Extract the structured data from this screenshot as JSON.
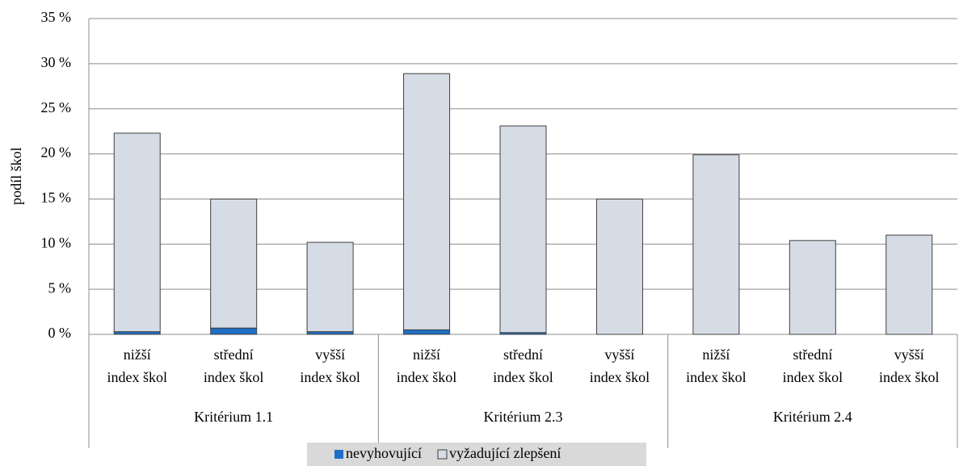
{
  "chart_data": {
    "type": "stacked_bar",
    "ylabel": "podíl škol",
    "categories": [
      "nižší\nindex škol",
      "střední\nindex škol",
      "vyšší\nindex škol",
      "nižší\nindex škol",
      "střední\nindex škol",
      "vyšší\nindex škol",
      "nižší\nindex škol",
      "střední\nindex škol",
      "vyšší\nindex škol"
    ],
    "groups": [
      "Kritérium 1.1",
      "Kritérium 2.3",
      "Kritérium 2.4"
    ],
    "series": [
      {
        "name": "nevyhovující",
        "color": "#1f6fc5",
        "values": [
          0.3,
          0.7,
          0.3,
          0.5,
          0.2,
          0,
          0,
          0,
          0
        ]
      },
      {
        "name": "vyžadující zlepšení",
        "color": "#d6dce5",
        "values": [
          22.0,
          14.3,
          9.9,
          28.4,
          22.9,
          15.0,
          19.9,
          10.4,
          11.0
        ]
      }
    ],
    "ylim": [
      0,
      35
    ],
    "yticks": [
      {
        "value": 0,
        "label": "0 %"
      },
      {
        "value": 5,
        "label": "5 %"
      },
      {
        "value": 10,
        "label": "10 %"
      },
      {
        "value": 15,
        "label": "15 %"
      },
      {
        "value": 20,
        "label": "20 %"
      },
      {
        "value": 25,
        "label": "25 %"
      },
      {
        "value": 30,
        "label": "30 %"
      },
      {
        "value": 35,
        "label": "35 %"
      }
    ],
    "grid": true,
    "legend": "bottom"
  }
}
